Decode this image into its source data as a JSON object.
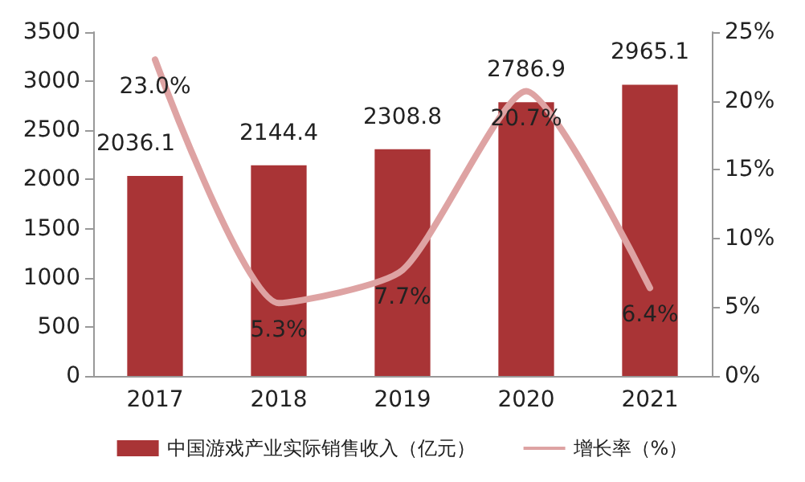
{
  "chart_data": {
    "type": "bar",
    "categories": [
      "2017",
      "2018",
      "2019",
      "2020",
      "2021"
    ],
    "series": [
      {
        "name": "中国游戏产业实际销售收入（亿元）",
        "color": "#a93436",
        "values": [
          2036.1,
          2144.4,
          2308.8,
          2786.9,
          2965.1
        ],
        "value_labels": [
          "2036.1",
          "2144.4",
          "2308.8",
          "2786.9",
          "2965.1"
        ]
      },
      {
        "name": "增长率（%）",
        "type": "line",
        "axis": "y2",
        "color": "#dea3a3",
        "values": [
          23.0,
          5.3,
          7.7,
          20.7,
          6.4
        ],
        "value_labels": [
          "23.0%",
          "5.3%",
          "7.7%",
          "20.7%",
          "6.4%"
        ]
      }
    ],
    "ylim": [
      0,
      3500
    ],
    "yticks": [
      0,
      500,
      1000,
      1500,
      2000,
      2500,
      3000,
      3500
    ],
    "y2lim": [
      0,
      25
    ],
    "y2ticks": [
      {
        "value": 0,
        "label": "0%"
      },
      {
        "value": 5,
        "label": "5%"
      },
      {
        "value": 10,
        "label": "10%"
      },
      {
        "value": 15,
        "label": "15%"
      },
      {
        "value": 20,
        "label": "20%"
      },
      {
        "value": 25,
        "label": "25%"
      }
    ],
    "grid": false,
    "legend": "bottom",
    "marker": "none"
  }
}
